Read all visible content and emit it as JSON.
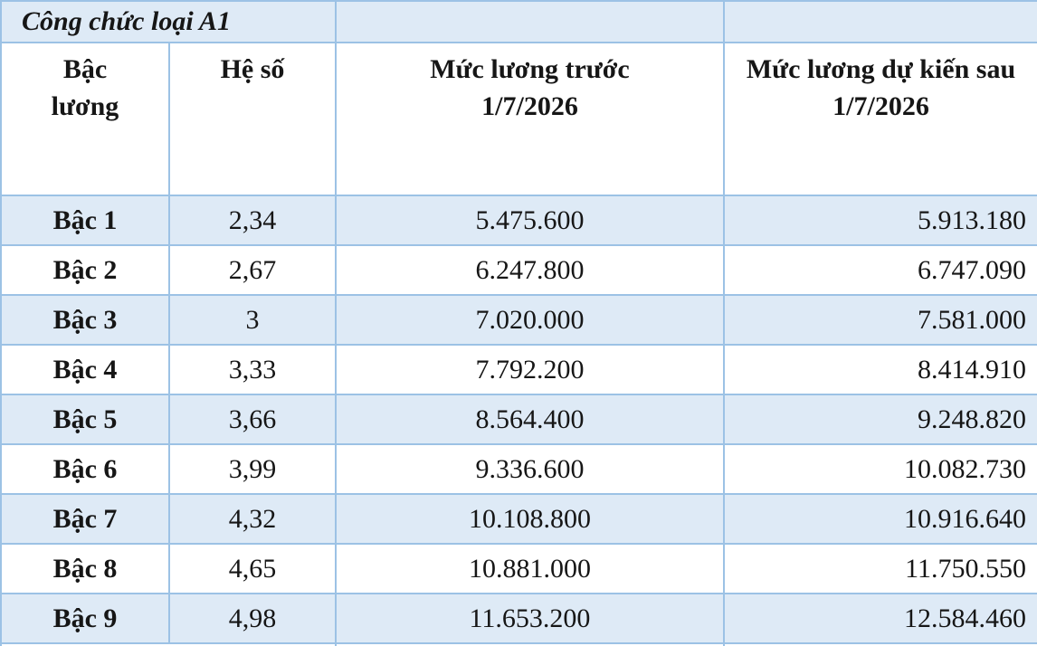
{
  "table": {
    "title": "Công chức loại A1",
    "columns": [
      "Bậc lương",
      "Hệ số",
      "Mức lương trước 1/7/2026",
      "Mức lương dự kiến sau 1/7/2026"
    ],
    "rows": [
      {
        "grade": "Bậc 1",
        "coefficient": "2,34",
        "before": "5.475.600",
        "after": "5.913.180"
      },
      {
        "grade": "Bậc 2",
        "coefficient": "2,67",
        "before": "6.247.800",
        "after": "6.747.090"
      },
      {
        "grade": "Bậc 3",
        "coefficient": "3",
        "before": "7.020.000",
        "after": "7.581.000"
      },
      {
        "grade": "Bậc 4",
        "coefficient": "3,33",
        "before": "7.792.200",
        "after": "8.414.910"
      },
      {
        "grade": "Bậc 5",
        "coefficient": "3,66",
        "before": "8.564.400",
        "after": "9.248.820"
      },
      {
        "grade": "Bậc 6",
        "coefficient": "3,99",
        "before": "9.336.600",
        "after": "10.082.730"
      },
      {
        "grade": "Bậc 7",
        "coefficient": "4,32",
        "before": "10.108.800",
        "after": "10.916.640"
      },
      {
        "grade": "Bậc 8",
        "coefficient": "4,65",
        "before": "10.881.000",
        "after": "11.750.550"
      },
      {
        "grade": "Bậc 9",
        "coefficient": "4,98",
        "before": "11.653.200",
        "after": "12.584.460"
      }
    ]
  },
  "colors": {
    "row_band": "#deeaf6",
    "border": "#9cc2e5",
    "text": "#161616",
    "background": "#ffffff"
  }
}
